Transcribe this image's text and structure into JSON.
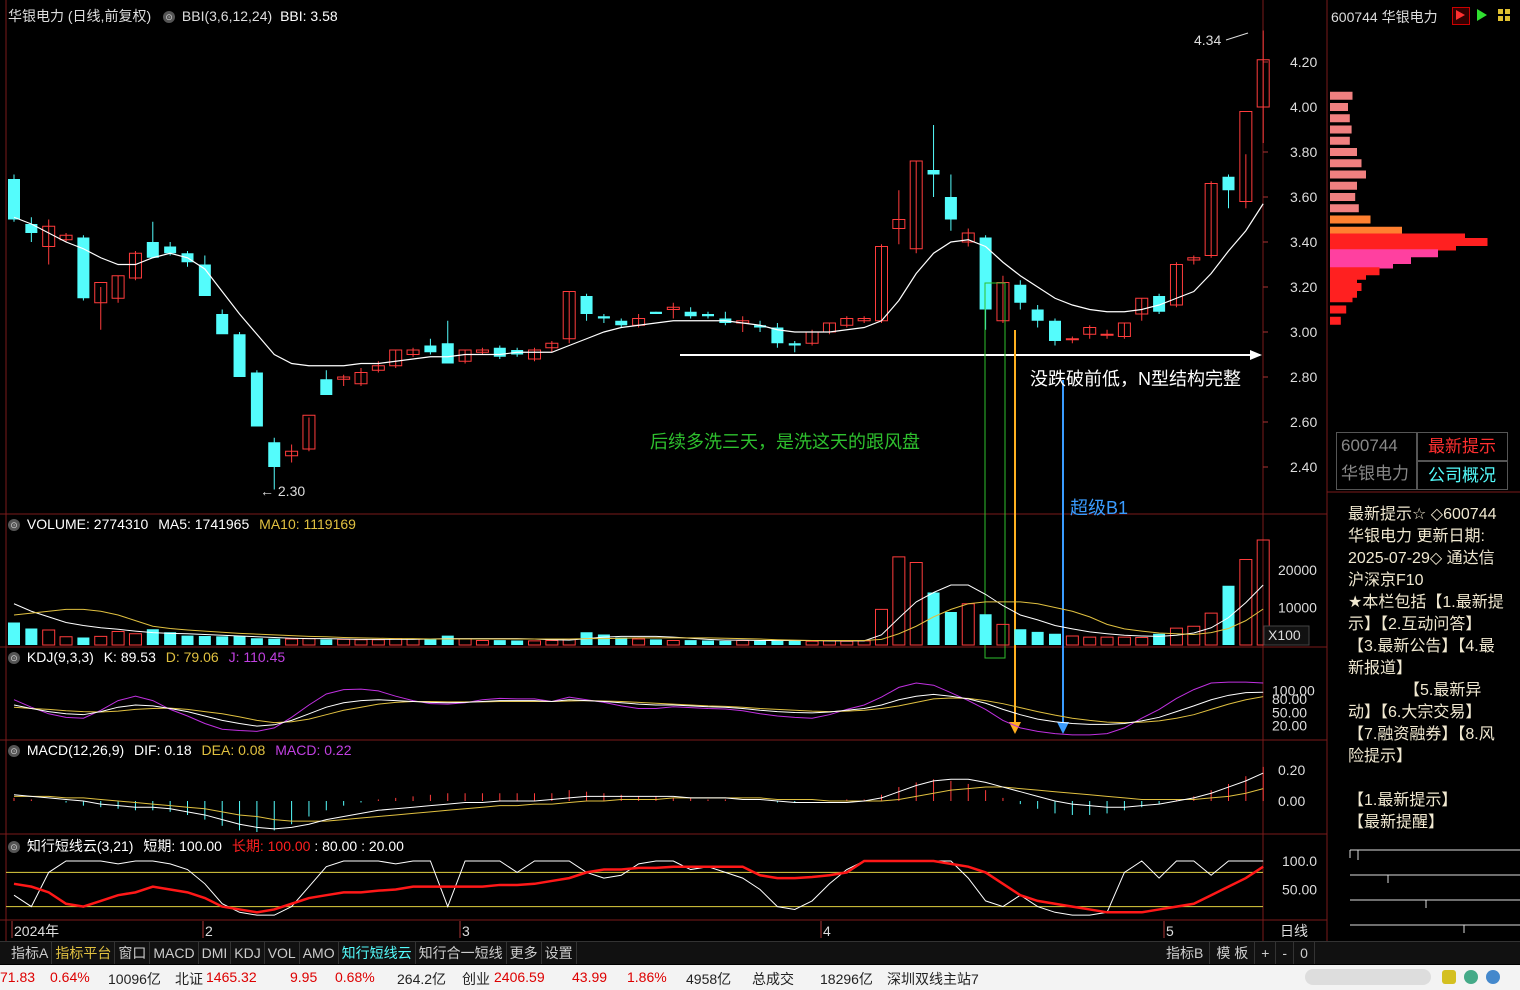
{
  "app": {
    "title": "华银电力 (日线,前复权)",
    "indicator_label": "BBI(3,6,12,24)",
    "indicator_value": "BBI: 3.58"
  },
  "price_panel": {
    "y_ticks": [
      "4.20",
      "4.00",
      "3.80",
      "3.60",
      "3.40",
      "3.20",
      "3.00",
      "2.80",
      "2.60",
      "2.40"
    ],
    "high_label": "4.34",
    "low_label": "2.30",
    "annotation_support": "没跌破前低，N型结构完整",
    "annotation_wash": "后续多洗三天，是洗这天的跟风盘",
    "annotation_b1": "超级B1",
    "colors": {
      "up": "#ff3c3c",
      "down": "#54fcfc",
      "ma": "#ffffff",
      "support": "#ffffff",
      "wash": "#2ec02e",
      "b1": "#3a9cff"
    }
  },
  "volume_panel": {
    "label": "VOLUME: 2774310",
    "ma5": "MA5: 1741965",
    "ma10": "MA10: 1119169",
    "y_ticks": [
      "20000",
      "10000"
    ],
    "unit": "X100"
  },
  "kdj_panel": {
    "label": "KDJ(9,3,3)",
    "k": "K: 89.53",
    "d": "D: 79.06",
    "j": "J: 110.45",
    "y_ticks": [
      "100.00",
      "80.00",
      "50.00",
      "20.00"
    ]
  },
  "macd_panel": {
    "label": "MACD(12,26,9)",
    "dif": "DIF: 0.18",
    "dea": "DEA: 0.08",
    "macd": "MACD: 0.22",
    "y_ticks": [
      "0.20",
      "0.00"
    ]
  },
  "cloud_panel": {
    "label": "知行短线云(3,21)",
    "short": "短期: 100.00",
    "long": "长期: 100.00",
    "v1": ": 80.00",
    "v2": ": 20.00",
    "y_ticks": [
      "100.0",
      "50.00"
    ]
  },
  "x_axis": {
    "labels": [
      "2024年",
      "2",
      "3",
      "4",
      "5"
    ],
    "period": "日线"
  },
  "right_panel": {
    "code": "600744",
    "name": "华银电力",
    "y_ticks": [
      "4.20",
      "4.00",
      "3.80",
      "3.60",
      "3.40",
      "3.20",
      "3.00",
      "2.80",
      "2.60",
      "2.40"
    ],
    "box_code": "600744",
    "box_name": "华银电力",
    "btn_latest": "最新提示",
    "btn_profile": "公司概况",
    "text_lines": [
      "最新提示☆ ◇600744",
      "华银电力 更新日期:",
      "2025-07-29◇ 通达信",
      "沪深京F10",
      "★本栏包括【1.最新提",
      "示】【2.互动问答】",
      "【3.最新公告】【4.最",
      "新报道】",
      "　　　　【5.最新异",
      "动】【6.大宗交易】",
      "【7.融资融券】【8.风",
      "险提示】",
      "",
      " 【1.最新提示】",
      " 【最新提醒】"
    ]
  },
  "toolbar": {
    "tabs": [
      "指标A",
      "指标平台",
      "窗口",
      "MACD",
      "DMI",
      "KDJ",
      "VOL",
      "AMO",
      "知行短线云",
      "知行合一短线",
      "更多",
      "设置"
    ],
    "right_tabs": [
      "指标B",
      "模 板",
      "+",
      "-",
      "0"
    ]
  },
  "status_bar": {
    "items": [
      "71.83",
      "0.64%",
      "10096亿",
      "北证",
      "1465.32",
      "9.95",
      "0.68%",
      "264.2亿",
      "创业",
      "2406.59",
      "43.99",
      "1.86%",
      "4958亿",
      "总成交",
      "18296亿",
      "深圳双线主站7"
    ]
  }
}
